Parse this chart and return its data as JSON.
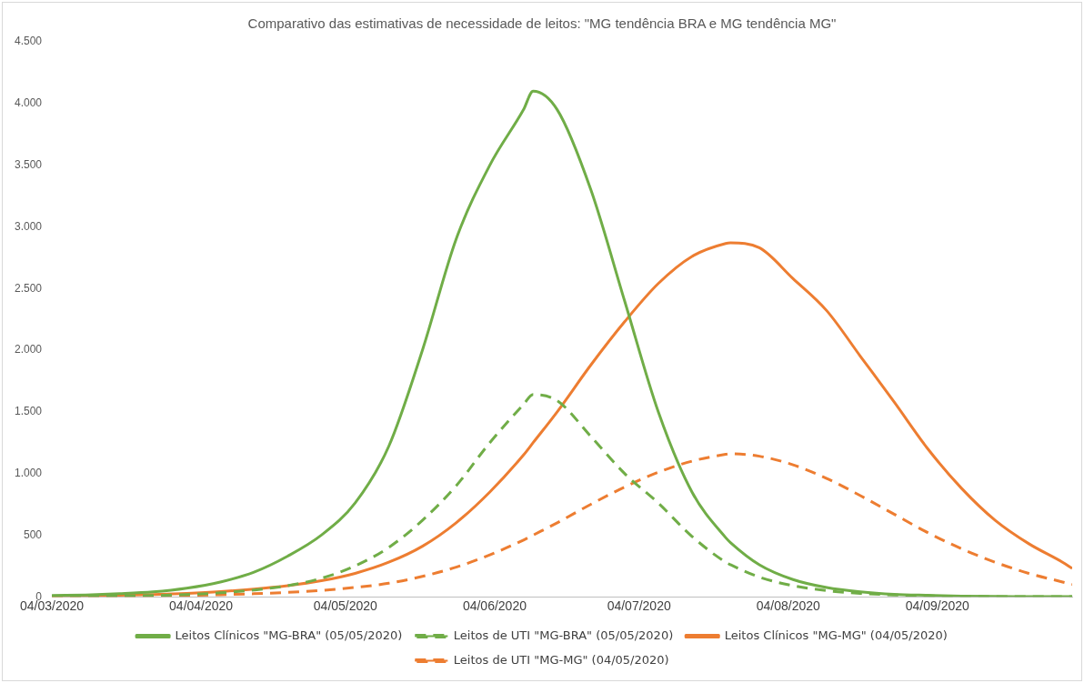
{
  "chart_data": {
    "type": "line",
    "title": "Comparativo das estimativas de necessidade de leitos: \"MG tendência BRA e MG tendência MG\"",
    "x": [
      "2020-03-04",
      "2020-03-11",
      "2020-03-18",
      "2020-03-25",
      "2020-04-01",
      "2020-04-08",
      "2020-04-15",
      "2020-04-22",
      "2020-04-29",
      "2020-05-06",
      "2020-05-13",
      "2020-05-20",
      "2020-05-27",
      "2020-06-03",
      "2020-06-10",
      "2020-06-12",
      "2020-06-17",
      "2020-06-24",
      "2020-07-01",
      "2020-07-08",
      "2020-07-15",
      "2020-07-22",
      "2020-07-23",
      "2020-07-29",
      "2020-08-05",
      "2020-08-12",
      "2020-08-19",
      "2020-08-26",
      "2020-09-02",
      "2020-09-09",
      "2020-09-16",
      "2020-09-23",
      "2020-09-30",
      "2020-10-02"
    ],
    "series": [
      {
        "name": "Leitos Clínicos \"MG-BRA\" (05/05/2020)",
        "color": "#70ad47",
        "line_style": "solid",
        "values": [
          10,
          15,
          25,
          40,
          70,
          120,
          200,
          330,
          500,
          760,
          1220,
          2000,
          2900,
          3500,
          3950,
          4100,
          3950,
          3300,
          2400,
          1500,
          850,
          480,
          440,
          260,
          140,
          75,
          40,
          20,
          12,
          6,
          3,
          2,
          1,
          1
        ]
      },
      {
        "name": "Leitos de UTI \"MG-BRA\" (05/05/2020)",
        "color": "#70ad47",
        "line_style": "dashed",
        "values": [
          3,
          4,
          6,
          10,
          18,
          32,
          55,
          90,
          150,
          250,
          400,
          620,
          900,
          1250,
          1560,
          1640,
          1590,
          1300,
          1000,
          760,
          490,
          280,
          260,
          160,
          90,
          50,
          28,
          15,
          8,
          4,
          2,
          1,
          1,
          1
        ]
      },
      {
        "name": "Leitos Clínicos \"MG-MG\" (04/05/2020)",
        "color": "#ed7d31",
        "line_style": "solid",
        "values": [
          5,
          8,
          12,
          18,
          28,
          42,
          62,
          90,
          130,
          190,
          280,
          410,
          600,
          850,
          1150,
          1250,
          1500,
          1880,
          2230,
          2540,
          2760,
          2865,
          2870,
          2830,
          2580,
          2320,
          1950,
          1580,
          1200,
          880,
          620,
          430,
          280,
          230
        ]
      },
      {
        "name": "Leitos de UTI \"MG-MG\" (04/05/2020)",
        "color": "#ed7d31",
        "line_style": "dashed",
        "values": [
          2,
          3,
          5,
          7,
          11,
          17,
          25,
          36,
          52,
          76,
          110,
          165,
          240,
          340,
          460,
          500,
          600,
          750,
          890,
          1010,
          1100,
          1155,
          1160,
          1140,
          1070,
          960,
          820,
          670,
          520,
          390,
          280,
          190,
          120,
          100
        ]
      }
    ],
    "xlim": [
      "2020-03-04",
      "2020-10-02"
    ],
    "xticks": [
      {
        "value": "2020-03-04",
        "label": "04/03/2020"
      },
      {
        "value": "2020-04-04",
        "label": "04/04/2020"
      },
      {
        "value": "2020-05-04",
        "label": "04/05/2020"
      },
      {
        "value": "2020-06-04",
        "label": "04/06/2020"
      },
      {
        "value": "2020-07-04",
        "label": "04/07/2020"
      },
      {
        "value": "2020-08-04",
        "label": "04/08/2020"
      },
      {
        "value": "2020-09-04",
        "label": "04/09/2020"
      }
    ],
    "ylim": [
      0,
      4500
    ],
    "yticks": [
      0,
      {
        "value": 500,
        "label": "500"
      },
      {
        "value": 1000,
        "label": "1.000"
      },
      {
        "value": 1500,
        "label": "1.500"
      },
      {
        "value": 2000,
        "label": "2.000"
      },
      {
        "value": 2500,
        "label": "2.500"
      },
      {
        "value": 3000,
        "label": "3.000"
      },
      {
        "value": 3500,
        "label": "3.500"
      },
      {
        "value": 4000,
        "label": "4.000"
      },
      {
        "value": 4500,
        "label": "4.500"
      }
    ],
    "grid": false,
    "legend": "bottom",
    "marker": "none"
  }
}
